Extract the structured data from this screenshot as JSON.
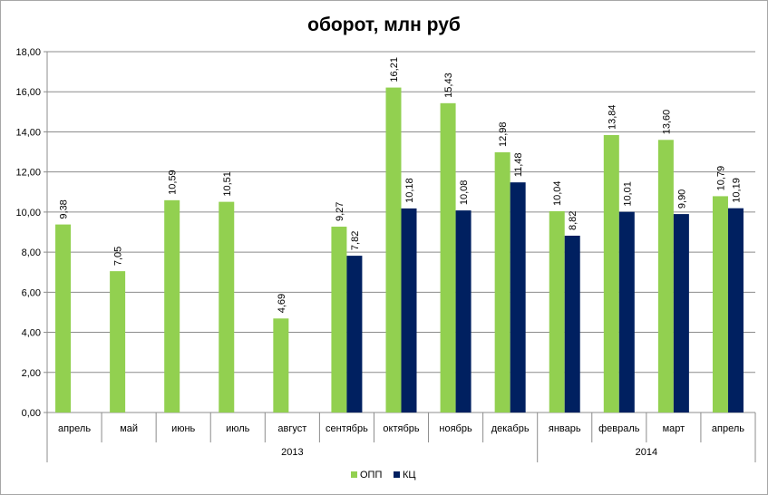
{
  "chart_data": {
    "type": "bar",
    "title": "оборот, млн руб",
    "categories": [
      "апрель",
      "май",
      "июнь",
      "июль",
      "август",
      "сентябрь",
      "октябрь",
      "ноябрь",
      "декабрь",
      "январь",
      "февраль",
      "март",
      "апрель"
    ],
    "groups": [
      {
        "label": "2013",
        "span": 9
      },
      {
        "label": "2014",
        "span": 4
      }
    ],
    "series": [
      {
        "name": "ОПП",
        "color": "#92d050",
        "values": [
          9.38,
          7.05,
          10.59,
          10.51,
          4.69,
          9.27,
          16.21,
          15.43,
          12.98,
          10.04,
          13.84,
          13.6,
          10.79
        ],
        "labels": [
          "9,38",
          "7,05",
          "10,59",
          "10,51",
          "4,69",
          "9,27",
          "16,21",
          "15,43",
          "12,98",
          "10,04",
          "13,84",
          "13,60",
          "10,79"
        ]
      },
      {
        "name": "КЦ",
        "color": "#002060",
        "values": [
          null,
          null,
          null,
          null,
          null,
          7.82,
          10.18,
          10.08,
          11.48,
          8.82,
          10.01,
          9.9,
          10.19
        ],
        "labels": [
          "",
          "",
          "",
          "",
          "",
          "7,82",
          "10,18",
          "10,08",
          "11,48",
          "8,82",
          "10,01",
          "9,90",
          "10,19"
        ]
      }
    ],
    "ylim": [
      0,
      18
    ],
    "yticks": [
      "0,00",
      "2,00",
      "4,00",
      "6,00",
      "8,00",
      "10,00",
      "12,00",
      "14,00",
      "16,00",
      "18,00"
    ],
    "grid": true,
    "legend": "bottom"
  }
}
